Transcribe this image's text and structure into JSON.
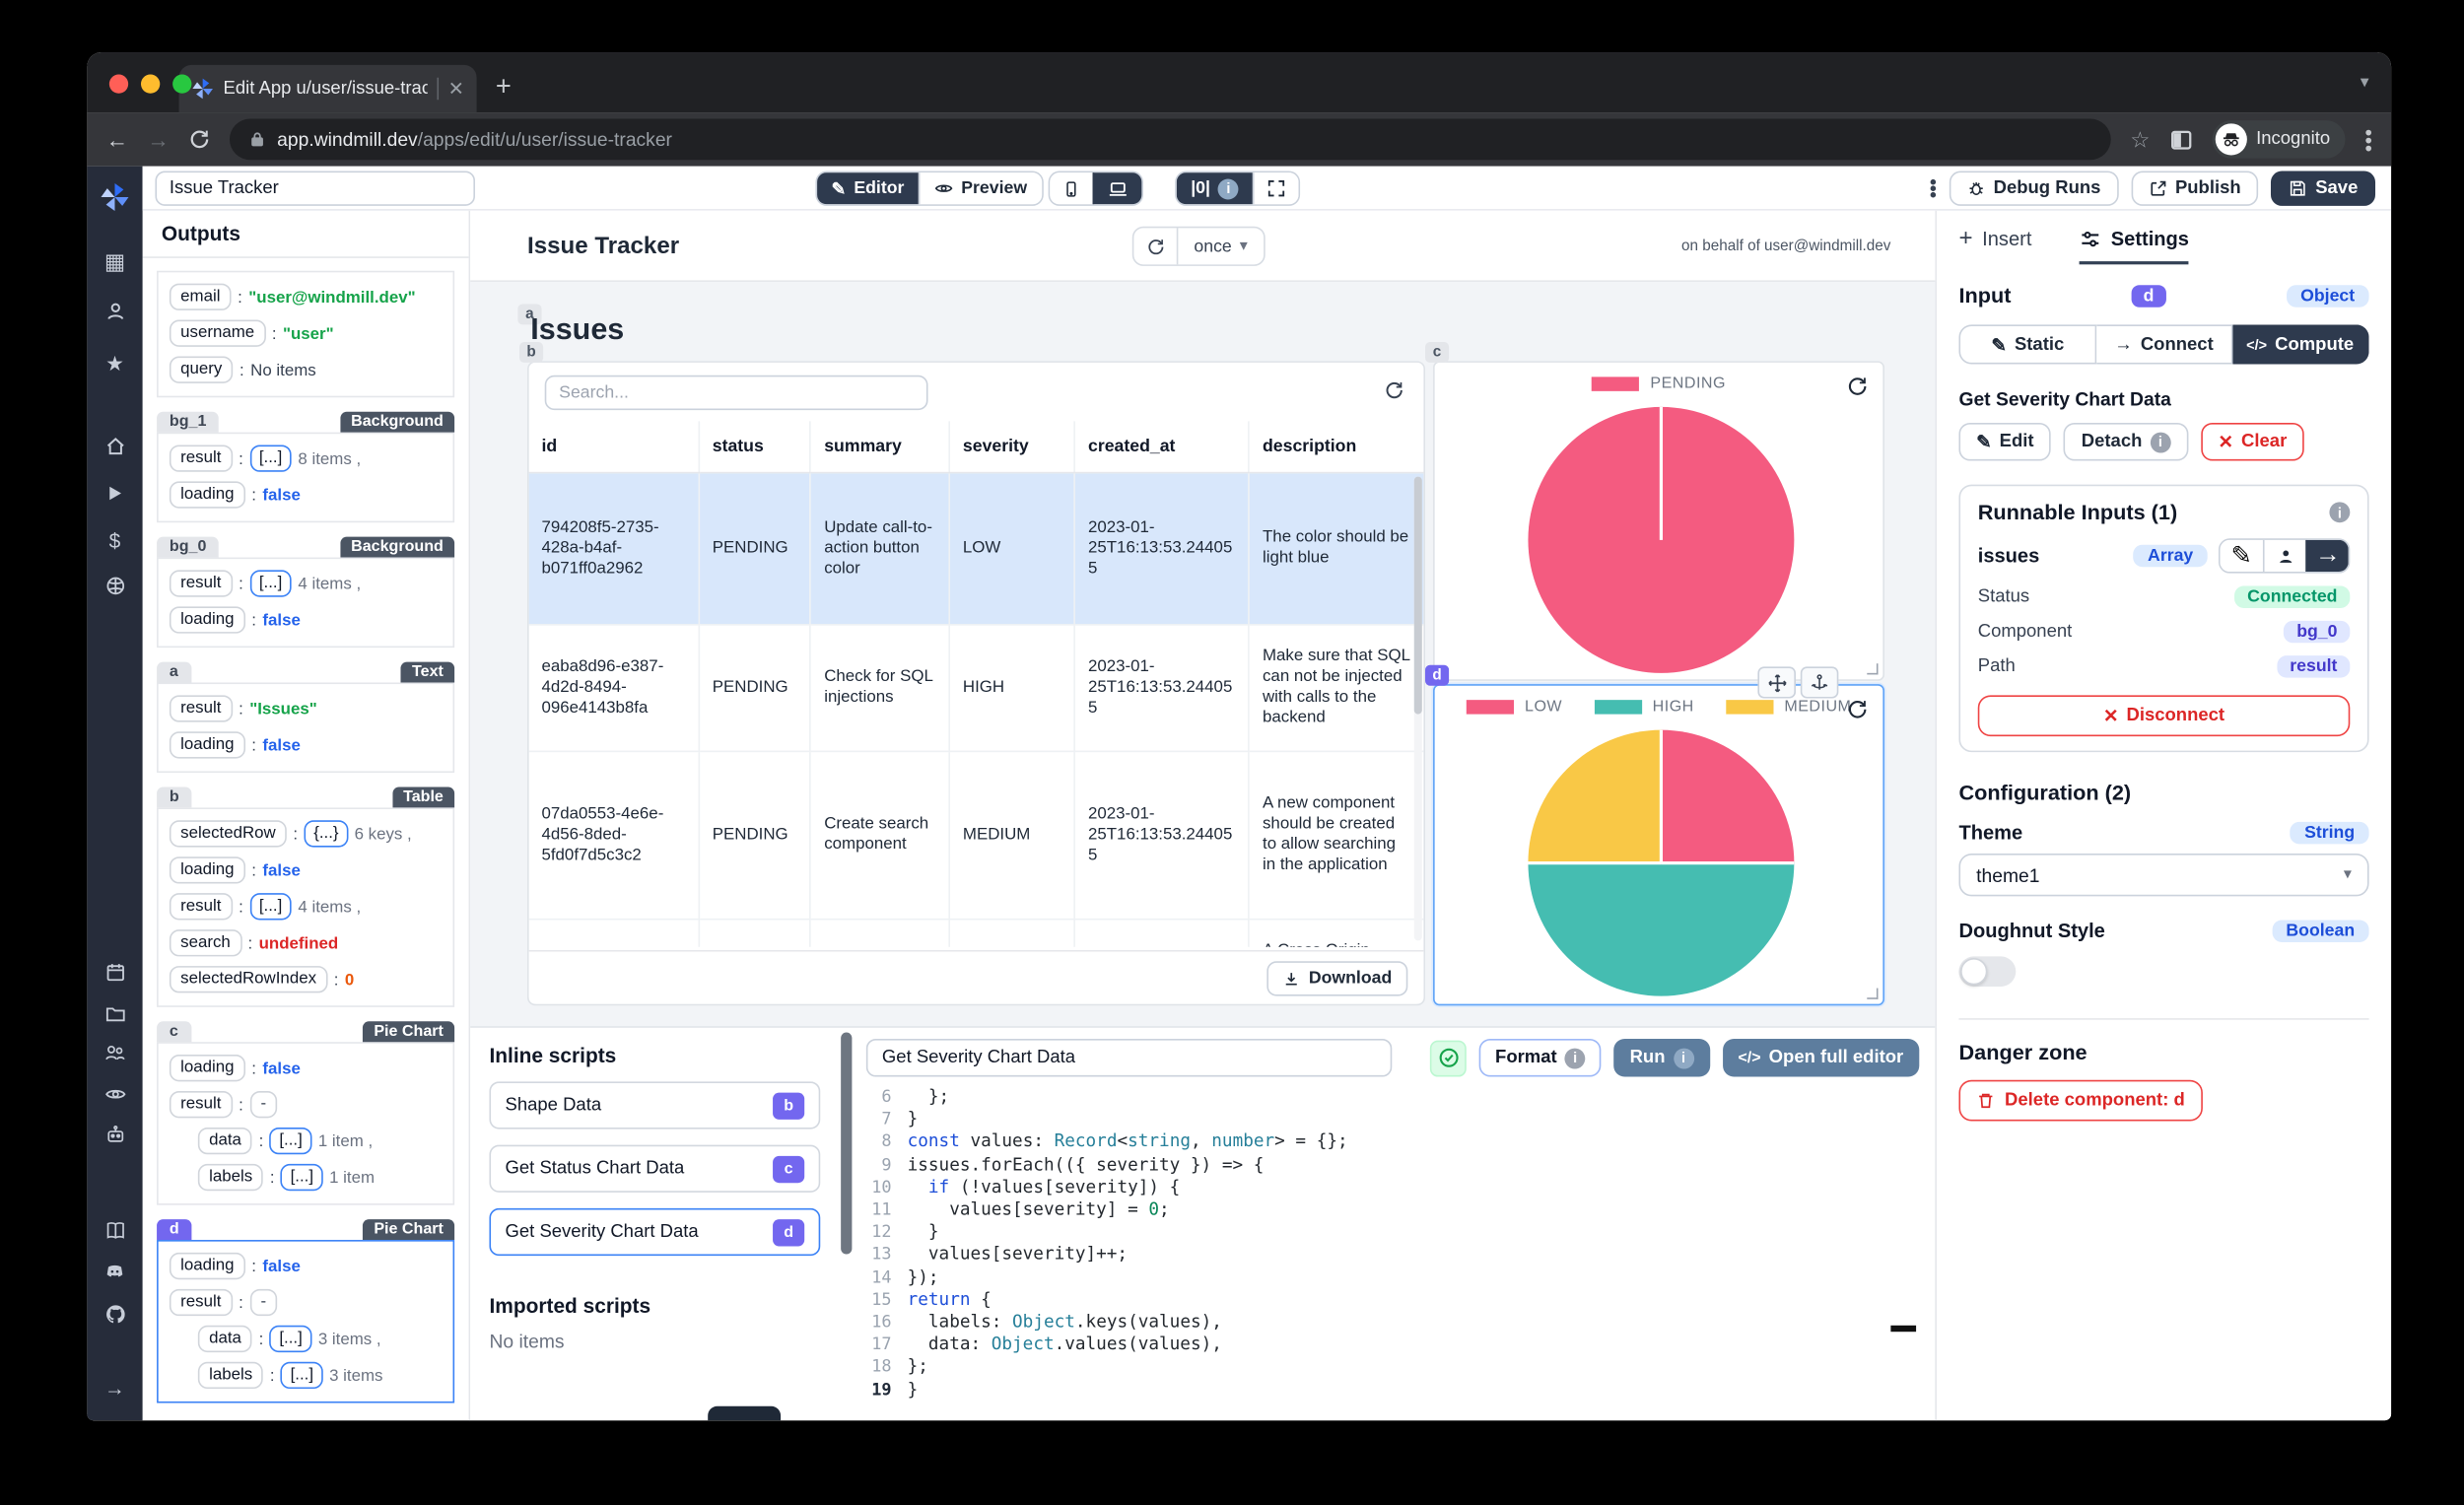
{
  "colors": {
    "pink": "#f45b80",
    "teal": "#45bdb1",
    "yellow": "#f9c846",
    "indigo": "#7367ef",
    "dark": "#2e3a4e",
    "blue_select": "#3b82f6"
  },
  "browser": {
    "tab_title": "Edit App u/user/issue-tracker",
    "url_host": "app.windmill.dev",
    "url_path": "/apps/edit/u/user/issue-tracker",
    "incognito_label": "Incognito"
  },
  "toolbar": {
    "app_name": "Issue Tracker",
    "editor_label": "Editor",
    "preview_label": "Preview",
    "zero_label": "|0|",
    "debug_label": "Debug Runs",
    "publish_label": "Publish",
    "save_label": "Save"
  },
  "sidebar": {
    "icons": [
      "windmill-logo",
      "grid",
      "user",
      "star",
      "home",
      "play",
      "dollar",
      "globe",
      "calendar",
      "folder",
      "users",
      "eye",
      "robot",
      "book",
      "discord",
      "github",
      "arrow-right"
    ]
  },
  "outputs": {
    "title": "Outputs",
    "sections": [
      {
        "id": "",
        "type": "",
        "selected": false,
        "rows": [
          {
            "key": "email",
            "value": "\"user@windmill.dev\"",
            "vtype": "string"
          },
          {
            "key": "username",
            "value": "\"user\"",
            "vtype": "string"
          },
          {
            "key": "query",
            "value": "No items",
            "vtype": "plain"
          }
        ]
      },
      {
        "id": "bg_1",
        "type": "Background",
        "selected": false,
        "rows": [
          {
            "key": "result",
            "bracket": "[...]",
            "bstyle": "blue",
            "suffix": "8 items ,"
          },
          {
            "key": "loading",
            "value": "false",
            "vtype": "bool"
          }
        ]
      },
      {
        "id": "bg_0",
        "type": "Background",
        "selected": false,
        "rows": [
          {
            "key": "result",
            "bracket": "[...]",
            "bstyle": "blue",
            "suffix": "4 items ,"
          },
          {
            "key": "loading",
            "value": "false",
            "vtype": "bool"
          }
        ]
      },
      {
        "id": "a",
        "type": "Text",
        "selected": false,
        "rows": [
          {
            "key": "result",
            "value": "\"Issues\"",
            "vtype": "string"
          },
          {
            "key": "loading",
            "value": "false",
            "vtype": "bool"
          }
        ]
      },
      {
        "id": "b",
        "type": "Table",
        "selected": false,
        "rows": [
          {
            "key": "selectedRow",
            "bracket": "{...}",
            "bstyle": "blue",
            "suffix": "6 keys ,"
          },
          {
            "key": "loading",
            "value": "false",
            "vtype": "bool"
          },
          {
            "key": "result",
            "bracket": "[...]",
            "bstyle": "blue",
            "suffix": "4 items ,"
          },
          {
            "key": "search",
            "value": "undefined",
            "vtype": "undef"
          },
          {
            "key": "selectedRowIndex",
            "value": "0",
            "vtype": "num"
          }
        ]
      },
      {
        "id": "c",
        "type": "Pie Chart",
        "selected": false,
        "rows": [
          {
            "key": "loading",
            "value": "false",
            "vtype": "bool"
          },
          {
            "key": "result",
            "bracket": "-",
            "bstyle": "gray"
          },
          {
            "key": "data",
            "bracket": "[...]",
            "bstyle": "blue",
            "suffix": "1 item ,",
            "indent": true
          },
          {
            "key": "labels",
            "bracket": "[...]",
            "bstyle": "blue",
            "suffix": "1 item",
            "indent": true
          }
        ]
      },
      {
        "id": "d",
        "type": "Pie Chart",
        "selected": true,
        "rows": [
          {
            "key": "loading",
            "value": "false",
            "vtype": "bool"
          },
          {
            "key": "result",
            "bracket": "-",
            "bstyle": "gray"
          },
          {
            "key": "data",
            "bracket": "[...]",
            "bstyle": "blue",
            "suffix": "3 items ,",
            "indent": true
          },
          {
            "key": "labels",
            "bracket": "[...]",
            "bstyle": "blue",
            "suffix": "3 items",
            "indent": true
          }
        ]
      }
    ]
  },
  "canvas": {
    "header": {
      "title": "Issue Tracker",
      "schedule": "once",
      "behalf": "on behalf of user@windmill.dev"
    },
    "text_component": {
      "badge": "a",
      "text": "Issues"
    },
    "table": {
      "badge": "b",
      "search_placeholder": "Search...",
      "columns": [
        "id",
        "status",
        "summary",
        "severity",
        "created_at",
        "description"
      ],
      "rows": [
        {
          "highlight": true,
          "cells": [
            "794208f5-2735-428a-b4af-b071ff0a2962",
            "PENDING",
            "Update call-to-action button color",
            "LOW",
            "2023-01-25T16:13:53.244055",
            "The color should be light blue"
          ],
          "h": 95
        },
        {
          "highlight": false,
          "cells": [
            "eaba8d96-e387-4d2d-8494-096e4143b8fa",
            "PENDING",
            "Check for SQL injections",
            "HIGH",
            "2023-01-25T16:13:53.244055",
            "Make sure that SQL can not be injected with calls to the backend"
          ],
          "h": 80
        },
        {
          "highlight": false,
          "cells": [
            "07da0553-4e6e-4d56-8ded-5fd0f7d5c3c2",
            "PENDING",
            "Create search component",
            "MEDIUM",
            "2023-01-25T16:13:53.244055",
            "A new component should be created to allow searching in the application"
          ],
          "h": 106
        },
        {
          "highlight": false,
          "cells": [
            "",
            "",
            "",
            "",
            "",
            "A Cross Origin"
          ],
          "h": 40
        }
      ],
      "download_label": "Download"
    }
  },
  "chart_data": [
    {
      "id": "c",
      "type": "pie",
      "title": "",
      "labels": [
        "PENDING"
      ],
      "values": [
        4
      ],
      "colors": [
        "#f45b80"
      ],
      "legend_position": "top",
      "selected": false
    },
    {
      "id": "d",
      "type": "pie",
      "title": "",
      "labels": [
        "LOW",
        "HIGH",
        "MEDIUM"
      ],
      "values": [
        1,
        2,
        1
      ],
      "colors": [
        "#f45b80",
        "#45bdb1",
        "#f9c846"
      ],
      "legend_position": "top",
      "selected": true
    }
  ],
  "scripts_panel": {
    "title": "Inline scripts",
    "items": [
      {
        "label": "Shape Data",
        "badge": "b",
        "selected": false
      },
      {
        "label": "Get Status Chart Data",
        "badge": "c",
        "selected": false
      },
      {
        "label": "Get Severity Chart Data",
        "badge": "d",
        "selected": true
      }
    ],
    "imported_title": "Imported scripts",
    "imported_empty": "No items"
  },
  "editor": {
    "title_value": "Get Severity Chart Data",
    "format_label": "Format",
    "run_label": "Run",
    "open_full_label": "Open full editor",
    "code_icon": "</>",
    "lines": [
      {
        "n": "6",
        "segs": [
          [
            "  };",
            "p"
          ]
        ]
      },
      {
        "n": "7",
        "segs": [
          [
            "}",
            "p"
          ]
        ]
      },
      {
        "n": "8",
        "segs": [
          [
            "const",
            "k"
          ],
          [
            " values: ",
            "p"
          ],
          [
            "Record",
            "ty"
          ],
          [
            "<",
            "p"
          ],
          [
            "string",
            "ty"
          ],
          [
            ", ",
            "p"
          ],
          [
            "number",
            "ty"
          ],
          [
            "> = {};",
            "p"
          ]
        ]
      },
      {
        "n": "9",
        "segs": [
          [
            "issues.forEach(({ severity }) => {",
            "p"
          ]
        ]
      },
      {
        "n": "10",
        "segs": [
          [
            "  ",
            "p"
          ],
          [
            "if",
            "k"
          ],
          [
            " (!values[severity]) {",
            "p"
          ]
        ]
      },
      {
        "n": "11",
        "segs": [
          [
            "    values[severity] = ",
            "p"
          ],
          [
            "0",
            "nu"
          ],
          [
            ";",
            "p"
          ]
        ]
      },
      {
        "n": "12",
        "segs": [
          [
            "  }",
            "p"
          ]
        ]
      },
      {
        "n": "13",
        "segs": [
          [
            "  values[severity]++;",
            "p"
          ]
        ]
      },
      {
        "n": "14",
        "segs": [
          [
            "});",
            "p"
          ]
        ]
      },
      {
        "n": "15",
        "segs": [
          [
            "return",
            "k"
          ],
          [
            " {",
            "p"
          ]
        ]
      },
      {
        "n": "16",
        "segs": [
          [
            "  labels: ",
            "p"
          ],
          [
            "Object",
            "ty"
          ],
          [
            ".keys(values),",
            "p"
          ]
        ]
      },
      {
        "n": "17",
        "segs": [
          [
            "  data: ",
            "p"
          ],
          [
            "Object",
            "ty"
          ],
          [
            ".values(values),",
            "p"
          ]
        ]
      },
      {
        "n": "18",
        "segs": [
          [
            "};",
            "p"
          ]
        ]
      },
      {
        "n": "19",
        "segs": [
          [
            "}",
            "p"
          ]
        ]
      }
    ]
  },
  "settings": {
    "insert_label": "Insert",
    "settings_label": "Settings",
    "input_label": "Input",
    "component_badge": "d",
    "type_badge": "Object",
    "static_label": "Static",
    "connect_label": "Connect",
    "compute_label": "Compute",
    "script_name": "Get Severity Chart Data",
    "edit_label": "Edit",
    "detach_label": "Detach",
    "clear_label": "Clear",
    "runnable": {
      "title": "Runnable Inputs (1)",
      "field": "issues",
      "field_type": "Array",
      "status_label": "Status",
      "status_value": "Connected",
      "component_label": "Component",
      "component_value": "bg_0",
      "path_label": "Path",
      "path_value": "result",
      "disconnect_label": "Disconnect"
    },
    "configuration": {
      "title": "Configuration (2)",
      "theme_label": "Theme",
      "theme_type": "String",
      "theme_value": "theme1",
      "doughnut_label": "Doughnut Style",
      "doughnut_type": "Boolean"
    },
    "danger": {
      "title": "Danger zone",
      "delete_label": "Delete component: d"
    }
  }
}
